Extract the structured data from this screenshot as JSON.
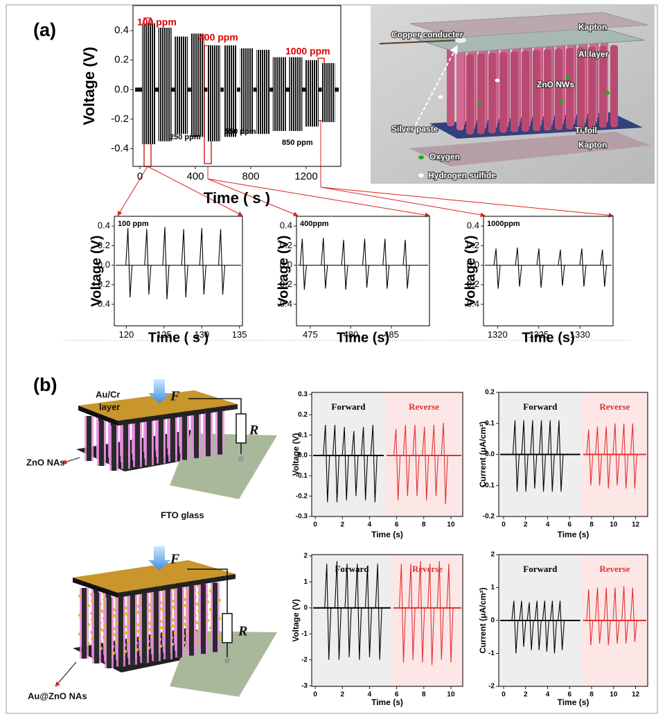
{
  "panel_labels": [
    "(a)",
    "(b)"
  ],
  "diagram_a": {
    "labels": [
      "Copper conducter",
      "Kapton",
      "Al layer",
      "ZnO NWs",
      "Silver paste",
      "Ti foil",
      "Kapton",
      "Oxygen",
      "Hydrogen sulfide"
    ]
  },
  "diagram_b": {
    "top": {
      "layer_label": [
        "Au/Cr",
        "layer"
      ],
      "force": "F",
      "resistor": "R",
      "rods": "ZnO NAs",
      "substrate": "FTO glass"
    },
    "bottom": {
      "force": "F",
      "resistor": "R",
      "rods": "Au@ZnO NAs"
    }
  },
  "chart_data": [
    {
      "type": "burst",
      "y_label": "Voltage (V)",
      "x_label": "Time ( s )",
      "xlim": [
        -50,
        1450
      ],
      "ylim": [
        -0.52,
        0.57
      ],
      "xticks": [
        0,
        400,
        800,
        1200
      ],
      "yticks": [
        -0.4,
        -0.2,
        {
          "value": 0,
          "label": "0.0"
        },
        0.2,
        0.4
      ],
      "series": [
        {
          "color": "#111111",
          "x": [
            15,
            133,
            251,
            369,
            487,
            605,
            723,
            841,
            959,
            1077,
            1195,
            1313
          ],
          "x_end": [
            110,
            228,
            346,
            464,
            582,
            700,
            818,
            936,
            1054,
            1172,
            1290,
            1408
          ],
          "values": [
            0.45,
            0.42,
            0.36,
            0.38,
            0.3,
            0.3,
            0.28,
            0.27,
            0.22,
            0.22,
            0.2,
            0.18
          ],
          "lows": [
            -0.37,
            -0.35,
            -0.3,
            -0.32,
            -0.35,
            -0.32,
            -0.3,
            -0.3,
            -0.28,
            -0.28,
            -0.25,
            -0.22
          ]
        }
      ],
      "annotations": [
        {
          "text": "100 ppm",
          "color": "#dd0000"
        },
        {
          "text": "400 ppm",
          "color": "#dd0000"
        },
        {
          "text": "1000 ppm",
          "color": "#dd0000"
        },
        {
          "text": "250 ppm",
          "color": "#000000"
        },
        {
          "text": "550 ppm",
          "color": "#000000"
        },
        {
          "text": "850 ppm",
          "color": "#000000"
        }
      ]
    },
    {
      "type": "pulse",
      "title": "100 ppm",
      "y_label": "Voltage (V)",
      "x_label": "Time ( s )",
      "xlim": [
        118.4,
        135.4
      ],
      "ylim": [
        -0.62,
        0.5
      ],
      "xticks": [
        120,
        125,
        130,
        135
      ],
      "yticks": [
        -0.4,
        -0.2,
        {
          "value": 0,
          "label": "0.0"
        },
        0.2,
        0.4
      ],
      "series": [
        {
          "color": "#000000",
          "x": [
            120.3,
            122.8,
            125.2,
            127.7,
            130.1,
            132.6
          ],
          "values": [
            0.38,
            0.37,
            0.39,
            0.37,
            0.38,
            0.37
          ],
          "lows": [
            -0.33,
            -0.3,
            -0.35,
            -0.33,
            -0.3,
            -0.3
          ]
        }
      ]
    },
    {
      "type": "pulse",
      "title": "400ppm",
      "y_label": "Voltage (V)",
      "x_label": "Time (s)",
      "xlim": [
        473.3,
        489.7
      ],
      "ylim": [
        -0.62,
        0.5
      ],
      "xticks": [
        475,
        480,
        485
      ],
      "yticks": [
        -0.4,
        -0.2,
        {
          "value": 0,
          "label": "0.0"
        },
        0.2,
        0.4
      ],
      "series": [
        {
          "color": "#000000",
          "x": [
            474.1,
            476.7,
            479.2,
            481.8,
            484.3,
            486.8
          ],
          "values": [
            0.27,
            0.28,
            0.26,
            0.27,
            0.27,
            0.26
          ],
          "lows": [
            -0.25,
            -0.24,
            -0.25,
            -0.23,
            -0.24,
            -0.24
          ]
        }
      ]
    },
    {
      "type": "pulse",
      "title": "1000ppm",
      "y_label": "Voltage (V)",
      "x_label": "Time (s)",
      "xlim": [
        1318.3,
        1334
      ],
      "ylim": [
        -0.62,
        0.5
      ],
      "xticks": [
        1320,
        1325,
        1330
      ],
      "yticks": [
        -0.4,
        -0.2,
        {
          "value": 0,
          "label": "0.0"
        },
        0.2,
        0.4
      ],
      "series": [
        {
          "color": "#000000",
          "x": [
            1319.9,
            1322.5,
            1325.1,
            1327.7,
            1330.3,
            1332.8
          ],
          "values": [
            0.17,
            0.18,
            0.17,
            0.16,
            0.17,
            0.16
          ],
          "lows": [
            -0.24,
            -0.22,
            -0.23,
            -0.21,
            -0.22,
            -0.22
          ]
        }
      ]
    },
    {
      "type": "pulse",
      "y_label": "Voltage (V)",
      "x_label": "Time (s)",
      "xlim": [
        -0.26,
        10.87
      ],
      "ylim": [
        -0.3,
        0.31
      ],
      "xticks": [
        0,
        2,
        4,
        6,
        8,
        10
      ],
      "yticks": [
        -0.3,
        -0.2,
        -0.1,
        {
          "value": 0,
          "label": "0.0"
        },
        0.1,
        0.2,
        0.3
      ],
      "regions": [
        {
          "label": "Forward",
          "range": [
            -0.26,
            5.15
          ],
          "color": "#eeeeee"
        },
        {
          "label": "Reverse",
          "range": [
            5.15,
            10.87
          ],
          "color": "#fde6e6"
        }
      ],
      "series": [
        {
          "color": "#000000",
          "x": [
            0.8,
            1.5,
            2.2,
            2.9,
            3.6,
            4.3
          ],
          "values": [
            0.15,
            0.15,
            0.14,
            0.12,
            0.14,
            0.15
          ],
          "lows": [
            -0.23,
            -0.23,
            -0.22,
            -0.2,
            -0.22,
            -0.23
          ]
        },
        {
          "color": "#e03030",
          "x": [
            6.0,
            6.7,
            7.4,
            8.1,
            8.8,
            9.5
          ],
          "values": [
            0.13,
            0.15,
            0.15,
            0.14,
            0.15,
            0.16
          ],
          "lows": [
            -0.22,
            -0.2,
            -0.2,
            -0.22,
            -0.2,
            -0.24
          ]
        }
      ]
    },
    {
      "type": "pulse",
      "y_label": "Current (μA/cm²)",
      "x_label": "Time (s)",
      "xlim": [
        -0.44,
        13.1
      ],
      "ylim": [
        -0.2,
        0.2
      ],
      "xticks": [
        0,
        2,
        4,
        6,
        8,
        10,
        12
      ],
      "yticks": [
        -0.2,
        -0.1,
        {
          "value": 0,
          "label": "0.0"
        },
        0.1,
        0.2
      ],
      "regions": [
        {
          "label": "Forward",
          "range": [
            -0.44,
            7.1
          ],
          "color": "#eeeeee"
        },
        {
          "label": "Reverse",
          "range": [
            7.1,
            13.1
          ],
          "color": "#fde6e6"
        }
      ],
      "series": [
        {
          "color": "#000000",
          "x": [
            1.1,
            1.9,
            2.7,
            3.5,
            4.3,
            5.1
          ],
          "values": [
            0.11,
            0.11,
            0.11,
            0.11,
            0.11,
            0.11
          ],
          "lows": [
            -0.12,
            -0.12,
            -0.11,
            -0.12,
            -0.12,
            -0.12
          ]
        },
        {
          "color": "#e03030",
          "x": [
            7.8,
            8.6,
            9.4,
            10.2,
            11.0,
            11.8
          ],
          "values": [
            0.08,
            0.09,
            0.09,
            0.1,
            0.1,
            0.1
          ],
          "lows": [
            -0.1,
            -0.1,
            -0.11,
            -0.1,
            -0.11,
            -0.11
          ]
        }
      ]
    },
    {
      "type": "pulse",
      "y_label": "Voltage (V)",
      "x_label": "Time (s)",
      "xlim": [
        -0.26,
        10.87
      ],
      "ylim": [
        -3.02,
        2.05
      ],
      "xticks": [
        0,
        2,
        4,
        6,
        8,
        10
      ],
      "yticks": [
        -3,
        -2,
        -1,
        0,
        1,
        2
      ],
      "regions": [
        {
          "label": "Forward",
          "range": [
            -0.26,
            5.66
          ],
          "color": "#eeeeee"
        },
        {
          "label": "Reverse",
          "range": [
            5.66,
            10.87
          ],
          "color": "#fde6e6"
        }
      ],
      "series": [
        {
          "color": "#000000",
          "x": [
            0.9,
            1.65,
            2.4,
            3.15,
            3.9,
            4.65
          ],
          "values": [
            1.7,
            1.8,
            1.7,
            1.7,
            1.6,
            1.7
          ],
          "lows": [
            -2,
            -2,
            -1.9,
            -2,
            -1.9,
            -2
          ]
        },
        {
          "color": "#e03030",
          "x": [
            6.4,
            7.1,
            7.8,
            8.5,
            9.2,
            9.9
          ],
          "values": [
            1.7,
            1.7,
            1.8,
            1.7,
            1.8,
            1.7
          ],
          "lows": [
            -2.1,
            -2,
            -2.1,
            -2.2,
            -2,
            -2.1
          ]
        }
      ]
    },
    {
      "type": "pulse",
      "y_label": "Current (μA/cm²)",
      "x_label": "Time (s)",
      "xlim": [
        -0.44,
        13.1
      ],
      "ylim": [
        -2,
        2
      ],
      "xticks": [
        0,
        2,
        4,
        6,
        8,
        10,
        12
      ],
      "yticks": [
        -2,
        -1,
        0,
        1,
        2
      ],
      "regions": [
        {
          "label": "Forward",
          "range": [
            -0.44,
            7.1
          ],
          "color": "#eeeeee"
        },
        {
          "label": "Reverse",
          "range": [
            7.1,
            13.1
          ],
          "color": "#fde6e6"
        }
      ],
      "series": [
        {
          "color": "#000000",
          "x": [
            1.0,
            1.7,
            2.4,
            3.1,
            3.8,
            4.5,
            5.2
          ],
          "values": [
            0.6,
            0.6,
            0.55,
            0.6,
            0.6,
            0.6,
            0.6
          ],
          "lows": [
            -1,
            -0.8,
            -0.9,
            -0.9,
            -0.95,
            -1,
            -0.9
          ]
        },
        {
          "color": "#e03030",
          "x": [
            7.8,
            8.6,
            9.4,
            10.2,
            11.0,
            11.8
          ],
          "values": [
            0.95,
            1,
            1,
            1,
            1.05,
            1
          ],
          "lows": [
            -0.75,
            -0.7,
            -0.75,
            -0.7,
            -0.7,
            -0.65
          ]
        }
      ]
    }
  ]
}
